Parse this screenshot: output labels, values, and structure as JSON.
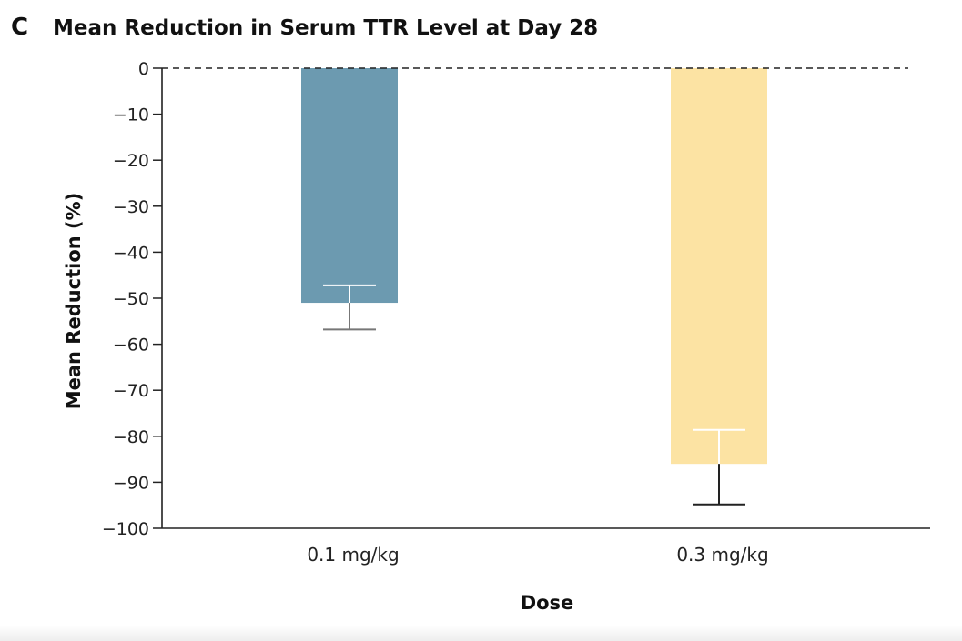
{
  "panel_letter": "C",
  "chart_data": {
    "type": "bar",
    "title": "Mean Reduction in Serum TTR Level at Day 28",
    "xlabel": "Dose",
    "ylabel": "Mean Reduction (%)",
    "categories": [
      "0.1 mg/kg",
      "0.3 mg/kg"
    ],
    "values": [
      -51,
      -86
    ],
    "error_low": [
      -56.8,
      -94.8
    ],
    "error_high": [
      -47.2,
      -78.6
    ],
    "ylim": [
      -100,
      0
    ],
    "yticks": [
      0,
      -10,
      -20,
      -30,
      -40,
      -50,
      -60,
      -70,
      -80,
      -90,
      -100
    ],
    "ytick_labels": [
      "0",
      "−10",
      "−20",
      "−30",
      "−40",
      "−50",
      "−60",
      "−70",
      "−80",
      "−90",
      "−100"
    ],
    "reference_line": 0,
    "grid": false,
    "colors": [
      "#6c9ab0",
      "#fce3a3"
    ],
    "error_colors_inside": [
      "#ffffff",
      "#ffffff"
    ],
    "error_colors_outside": [
      "#777777",
      "#222222"
    ]
  }
}
